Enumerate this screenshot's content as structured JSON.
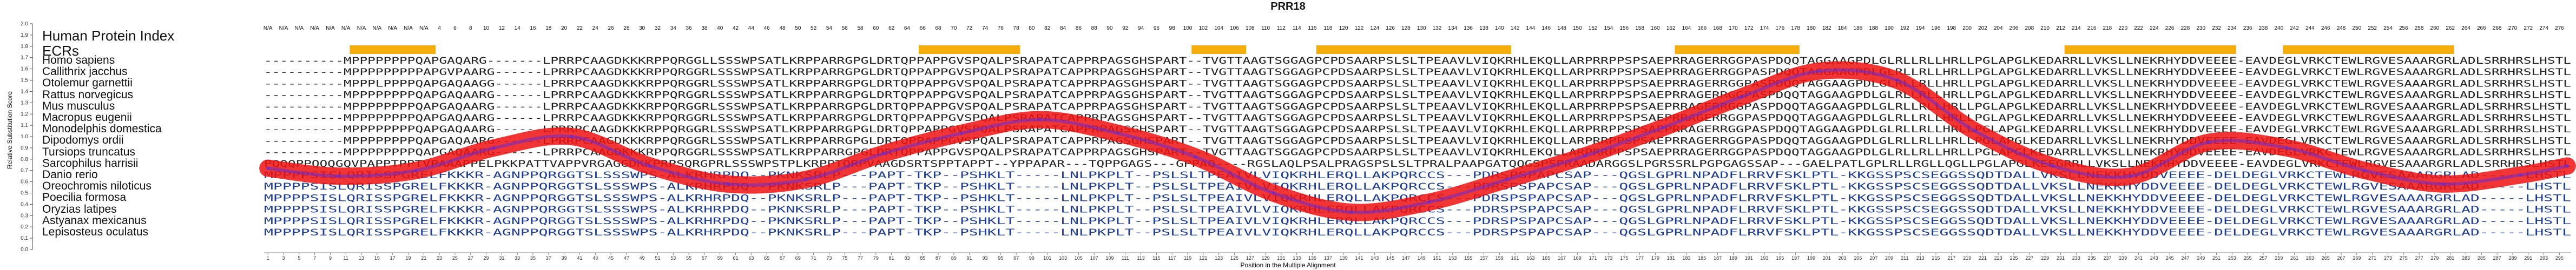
{
  "title": "PRR18",
  "y_axis_label": "Relative Substitution Score",
  "x_axis_label": "Position in the Multiple Alignment",
  "track_labels": {
    "index": "Human Protein Index",
    "ecrs": "ECRs"
  },
  "colors": {
    "ecr_bar": "#f4ad0d",
    "score_line_outer": "#ee1111",
    "score_line_inner": "#6a2bd0",
    "text_conserved": "#1e3c90",
    "text_plain": "#222222"
  },
  "species": [
    "Homo sapiens",
    "Callithrix jacchus",
    "Otolemur garnettii",
    "Rattus norvegicus",
    "Mus musculus",
    "Macropus eugenii",
    "Monodelphis domestica",
    "Dipodomys ordii",
    "Tursiops truncatus",
    "Sarcophilus harrisii",
    "Danio rerio",
    "Oreochromis niloticus",
    "Poecilia formosa",
    "Oryzias latipes",
    "Astyanax mexicanus",
    "Lepisosteus oculatus"
  ],
  "sequences": [
    "----------MPPPPPPPPQAPGAQARG-------LPRRPCAAGDKKKRPPQRGGLLSSSWPSATLKRPPARRGPGLDRTQPPAPPGVSPQALPSRAPATCAPPRPAGSGHSPART--TVGTTAAGTSGGAGPCPDSAARPSLSLTPEAAVLVIQKRHLEKQLLARPRRPPSPSAEPRRAGERRGGPASPDQQTAGGAAGPDLGLRLLRLLHRLLPGLAPGLKEDARRLLVKSLLNEKRHYDDVEEEE-EAVDEGLVRKCTEWLRGVESAAARGRLADLSRRHRSLHSTL",
    "----------MPPPPPPPPPAPGVPAARG------LPRRPCAAGDKKKRPPQRGGRLSSSWPSATLKRPPARRGPGLDRTQPPAPPGVSPQALPSRAPATCAPPRPAGSGHSPART--TVGTTAAGTSGGAGPCPDSAARPSLSLTPEAAVLVIQKRHLEKQLLARPRRPPSPSAEPRRAGERRGGPASPDQQTAGGAAGPDLGLRLLRLLHRLLPGLAPGLKEDARRLLVKSLLNEKRHYDDVEEEE-EAVDEGLVRKCTEWLRGVESAAARGRLADLSRRHRSLHSTL",
    "----------MPPPLPPPPQAPGAQAAGG------LPRRPCAAGDKKKRPPQRGGRLSSSWPSATLKRPPARRGPGLDRTQPPAPPGVSPQALPSRAPATCAPPRPAGSGHSPART--TVGTTAAGTSGGAGPCPDSAARPSLSLTPEAAVLVIQKRHLEKQLLARPRRPPSPSAEPRRAGERRGGPASPDQQTAGGAAGPDLGLRLLRLLHRLLPGLAPGLKEDARRLLVKSLLNEKRHYDDVEEEE-EAVDEGLVRKCTEWLRGVESAAARGRLADLSRRHRSLHSTL",
    "----------MPPPPPPPPQAPGAQAARG------LPRRPCAAGDKKKRPPQRGGRLSSSWPSATLKRPPARRGPGLDRTQPPAPPGVSPQALPSRAPATCAPPRPAGSGHSPART--TVGTTAAGTSGGAGPCPDSAARPSLSLTPEAAVLVIQKRHLEKQLLARPRRPPSPSAEPRRAGERRGGPASPDQQTAGGAAGPDLGLRLLRLLHRLLPGLAPGLKEDARRLLVKSLLNEKRHYDDVEEEE-EAVDEGLVRKCTEWLRGVESAAARGRLADLSRRHRSLHSTL",
    "----------MPPPPPPPPQAPGAQAARG------LPRRPCAAGDKKKRPPQRGGRLSSSWPSATLKRPPARRGPGLDRTQPPAPPGVSPQALPSRAPATCAPPRPAGSGHSPART--TVGTTAAGTSGGAGPCPDSAARPSLSLTPEAAVLVIQKRHLEKQLLARPRRPPSPSAEPRRAGERRGGPASPDQQTAGGAAGPDLGLRLLRLLHRLLPGLAPGLKEDARRLLVKSLLNEKRHYDDVEEEE-EAVDEGLVRKCTEWLRGVESAAARGRLADLSRRHRSLHSTL",
    "----------MPPPPPPPPQAPGAQAARG------LPRRPCAAGDKKKRPPQRGGRLSSSWPSATLKRPPARRGPGLDRTQPPAPPGVSPQALPSRAPATCAPPRPAGSGHSPART--TVGTTAAGTSGGAGPCPDSAARPSLSLTPEAAVLVIQKRHLEKQLLARPRRPPSPSAEPRRAGERRGGPASPDQQTAGGAAGPDLGLRLLRLLHRLLPGLAPGLKEDARRLLVKSLLNEKRHYDDVEEEE-EAVDEGLVRKCTEWLRGVESAAARGRLADLSRRHRSLHSTL",
    "----------MPPPPPPPPQAPGAQAARG------LPRRPCAAGDKKKRPPQRGGRLSSSWPSATLKRPPARRGPGLDRTQPPAPPGVSPQALPSRAPATCAPPRPAGSGHSPART--TVGTTAAGTSGGAGPCPDSAARPSLSLTPEAAVLVIQKRHLEKQLLARPRRPPSPSAEPRRAGERRGGPASPDQQTAGGAAGPDLGLRLLRLLHRLLPGLAPGLKEDARRLLVKSLLNEKRHYDDVEEEE-EAVDEGLVRKCTEWLRGVESAAARGRLADLSRRHRSLHSTL",
    "----------MPPPPPPPPQAPGAQAARG------LPRRPCAAGDKKKRPPQRGGRLSSSWPSATLKRPPARRGPGLDRTQPPAPPGVSPQALPSRAPATCAPPRPAGSGHSPART--TVGTTAAGTSGGAGPCPDSAARPSLSLTPEAAVLVIQKRHLEKQLLARPRRPPSPSAEPRRAGERRGGPASPDQQTAGGAAGPDLGLRLLRLLHRLLPGLAPGLKEDARRLLVKSLLNEKRHYDDVEEEE-EAVDEGLVRKCTEWLRGVESAAARGRLADLSRRHRSLHSTL",
    "----------MPPPPPPPPQAPGAQAARG------LPRRPCAAGDKKKRPPQRGGRLSSSWPSATLKRPPARRGPGLDRTQPPAPPGVSPQALPSRAPATCAPPRPAGSGHSPART--TVGTTAAGTSGGAGPCPDSAARPSLSLTPEAAVLVIQKRHLEKQLLARPRRPPSPSAEPRRAGERRGGPASPDQQTAGGAAGPDLGLRLLRLLHRLLPGLAPGLKEDARRLLVKSLLNEKRHYDDVEEEE-EAVDEGLVRKCTEWLRGVESAAARGRLADLSRRHRSLHSTL",
    "PQQQPPQQQGQVPAPPTPPTVPAAAPPELPKKPATTVAPPVRGAGGDKKPRPSQRGPRLSSSWPSTPLKRPPTQRPVAAGDSRTSPPTAPPT--YPPAPAR---TQPPGAGS---GPPAQ----RGSLAQLPSALPRAGSPSLSLTPRALPAAPGATQQGSPSPRAADARGGSLPGRSSRLPGPGAGSSAP---GAELPATLGPLRLLRGLLQGLLPGLAPGLKEEGRRLLVKSLLNEKRHYDDVEEEE-EAVDEGLVRKCTEWLRGVESAAARGRLADLSRRHRSLHSTL",
    "MPPPPSISLQRISSPGRELFKKKR-AGNPPQRGGTSLSSSWPS-ALKRHRPDQ--PKNKSRLP---PAPT-TKP--PSHKLT-----LNLPKPLT--PSLSLTPEAIVLVIQKRHLERQLLAKPQRCCS---PDRSPSPAPCSAP---QGSLGPRLNPADFLRRVFSKLPTL-KKGSSPSCSEGGSSQDTDALLVKSLLNEKKHYDDVEEEE-DELDEGLVRKCTEWLRGVESAAARGRLAD-----LHSTL",
    "MPPPPSISLQRISSPGRELFKKKR-AGNPPQRGGTSLSSSWPS-ALKRHRPDQ--PKNKSRLP---PAPT-TKP--PSHKLT-----LNLPKPLT--PSLSLTPEAIVLVIQKRHLERQLLAKPQRCCS---PDRSPSPAPCSAP---QGSLGPRLNPADFLRRVFSKLPTL-KKGSSPSCSEGGSSQDTDALLVKSLLNEKKHYDDVEEEE-DELDEGLVRKCTEWLRGVESAAARGRLAD-----LHSTL",
    "MPPPPSISLQRISSPGRELFKKKR-AGNPPQRGGTSLSSSWPS-ALKRHRPDQ--PKNKSRLP---PAPT-TKP--PSHKLT-----LNLPKPLT--PSLSLTPEAIVLVIQKRHLERQLLAKPQRCCS---PDRSPSPAPCSAP---QGSLGPRLNPADFLRRVFSKLPTL-KKGSSPSCSEGGSSQDTDALLVKSLLNEKKHYDDVEEEE-DELDEGLVRKCTEWLRGVESAAARGRLAD-----LHSTL",
    "MPPPPSISLQRISSPGRELFKKKR-AGNPPQRGGTSLSSSWPS-ALKRHRPDQ--PKNKSRLP---PAPT-TKP--PSHKLT-----LNLPKPLT--PSLSLTPEAIVLVIQKRHLERQLLAKPQRCCS---PDRSPSPAPCSAP---QGSLGPRLNPADFLRRVFSKLPTL-KKGSSPSCSEGGSSQDTDALLVKSLLNEKKHYDDVEEEE-DELDEGLVRKCTEWLRGVESAAARGRLAD-----LHSTL",
    "MPPPPSISLQRISSPGRELFKKKR-AGNPPQRGGTSLSSSWPS-ALKRHRPDQ--PKNKSRLP---PAPT-TKP--PSHKLT-----LNLPKPLT--PSLSLTPEAIVLVIQKRHLERQLLAKPQRCCS---PDRSPSPAPCSAP---QGSLGPRLNPADFLRRVFSKLPTL-KKGSSPSCSEGGSSQDTDALLVKSLLNEKKHYDDVEEEE-DELDEGLVRKCTEWLRGVESAAARGRLAD-----LHSTL",
    "MPPPPSISLQRISSPGRELFKKKR-AGNPPQRGGTSLSSSWPS-ALKRHRPDQ--PKNKSRLP---PAPT-TKP--PSHKLT-----LNLPKPLT--PSLSLTPEAIVLVIQKRHLERQLLAKPQRCCS---PDRSPSPAPCSAP---QGSLGPRLNPADFLRRVFSKLPTL-KKGSSPSCSEGGSSQDTDALLVKSLLNEKKHYDDVEEEE-DELDEGLVRKCTEWLRGVESAAARGRLAD-----LHSTL"
  ],
  "alignment_length": 296,
  "human_index_prefix": [
    "N/A",
    "N/A",
    "N/A",
    "N/A",
    "N/A",
    "N/A",
    "N/A",
    "N/A",
    "N/A",
    "N/A",
    "N/A"
  ],
  "human_index_step": 2,
  "ecr_spans": [
    [
      12,
      22
    ],
    [
      85,
      97
    ],
    [
      120,
      126
    ],
    [
      136,
      160
    ],
    [
      182,
      197
    ],
    [
      232,
      253
    ],
    [
      260,
      281
    ]
  ],
  "y_axis": {
    "min": 0.0,
    "max": 2.0,
    "step": 0.1
  },
  "x_axis": {
    "min": 1,
    "max": 296,
    "step": 2
  },
  "score_curve": {
    "x": [
      1,
      10,
      20,
      30,
      40,
      50,
      60,
      70,
      80,
      90,
      100,
      110,
      120,
      130,
      140,
      150,
      160,
      170,
      180,
      190,
      200,
      210,
      220,
      230,
      240,
      250,
      260,
      270,
      280,
      290,
      296
    ],
    "y": [
      0.72,
      0.65,
      0.7,
      0.9,
      1.0,
      0.74,
      0.58,
      0.62,
      0.85,
      1.03,
      1.15,
      1.03,
      0.82,
      0.5,
      0.33,
      0.42,
      0.62,
      0.83,
      1.08,
      1.35,
      1.58,
      1.5,
      1.05,
      0.74,
      0.65,
      0.95,
      0.9,
      0.7,
      0.58,
      0.66,
      0.74
    ]
  }
}
